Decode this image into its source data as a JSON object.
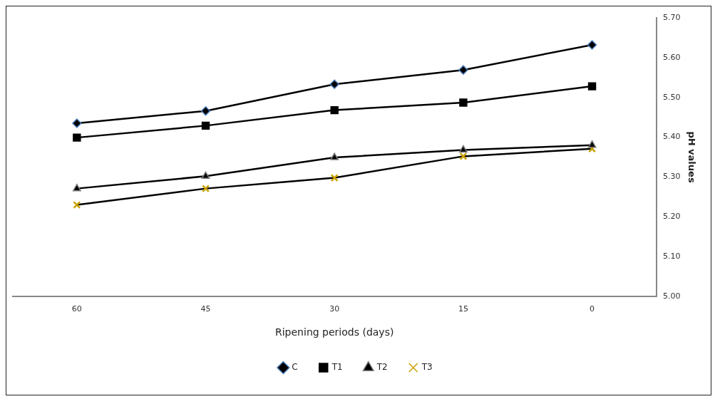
{
  "chart_data": {
    "type": "line",
    "xlabel": "Ripening periods (days)",
    "ylabel": "pH values",
    "categories": [
      "60",
      "45",
      "30",
      "15",
      "0"
    ],
    "series": [
      {
        "name": "C",
        "color": "#000000",
        "marker": "diamond",
        "values": [
          5.435,
          5.466,
          5.533,
          5.569,
          5.632
        ]
      },
      {
        "name": "T1",
        "color": "#000000",
        "marker": "square",
        "values": [
          5.399,
          5.429,
          5.468,
          5.487,
          5.528
        ]
      },
      {
        "name": "T2",
        "color": "#000000",
        "marker": "triangle",
        "values": [
          5.271,
          5.302,
          5.349,
          5.368,
          5.38
        ]
      },
      {
        "name": "T3",
        "color": "#000000",
        "marker": "cross",
        "values": [
          5.23,
          5.271,
          5.298,
          5.352,
          5.371
        ]
      }
    ],
    "ylim": [
      5,
      5.7
    ],
    "yticks": [
      {
        "value": 5,
        "label": "5.00"
      },
      {
        "value": 5.1,
        "label": "5.10"
      },
      {
        "value": 5.2,
        "label": "5.20"
      },
      {
        "value": 5.3,
        "label": "5.30"
      },
      {
        "value": 5.4,
        "label": "5.40"
      },
      {
        "value": 5.5,
        "label": "5.50"
      },
      {
        "value": 5.6,
        "label": "5.60"
      },
      {
        "value": 5.7,
        "label": "5.70"
      }
    ],
    "grid": false,
    "legend": "bottom",
    "line_style": "solid"
  }
}
